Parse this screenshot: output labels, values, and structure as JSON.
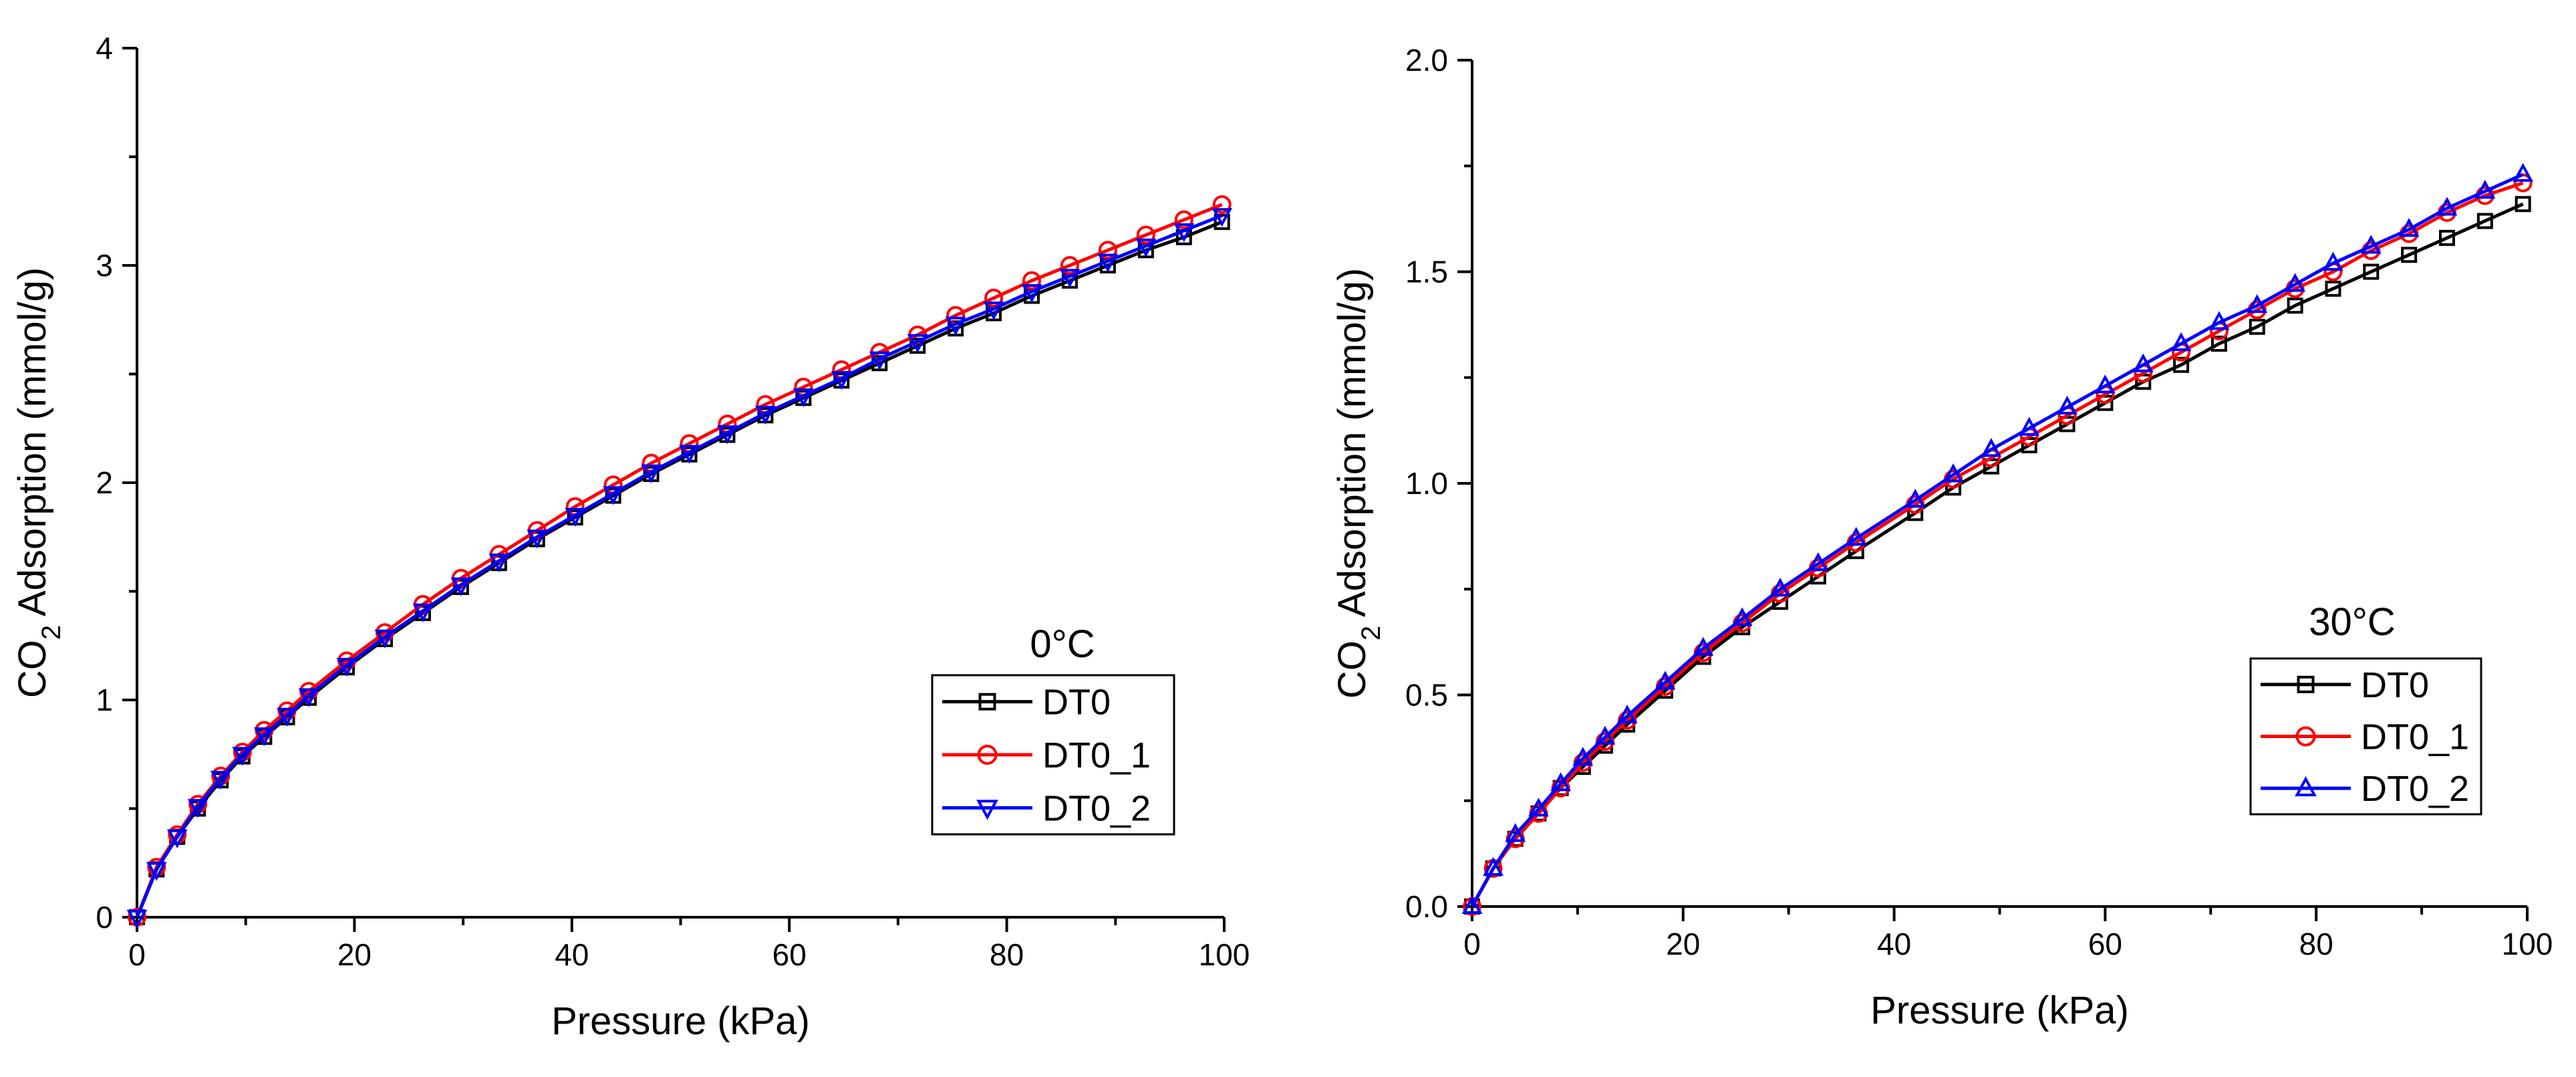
{
  "chart_data": [
    {
      "type": "line",
      "title": "",
      "annotation": "0°C",
      "xlabel": "Pressure (kPa)",
      "ylabel": {
        "prefix": "CO",
        "sub": "2",
        "suffix": " Adsorption (mmol/g)"
      },
      "xlim": [
        0,
        100
      ],
      "ylim": [
        0,
        4
      ],
      "xticks": [
        0,
        20,
        40,
        60,
        80,
        100
      ],
      "yticks": [
        0,
        1,
        2,
        3,
        4
      ],
      "xtick_labels": [
        "0",
        "20",
        "40",
        "60",
        "80",
        "100"
      ],
      "ytick_labels": [
        "0",
        "1",
        "2",
        "3",
        "4"
      ],
      "grid": false,
      "legend_position": "bottom-right",
      "x": [
        0,
        1.8,
        3.7,
        5.6,
        7.7,
        9.7,
        11.7,
        13.8,
        15.8,
        19.3,
        22.8,
        26.3,
        29.8,
        33.3,
        36.8,
        40.3,
        43.8,
        47.3,
        50.8,
        54.3,
        57.8,
        61.3,
        64.8,
        68.3,
        71.8,
        75.3,
        78.8,
        82.3,
        85.8,
        89.3,
        92.8,
        96.3,
        99.8
      ],
      "series": [
        {
          "name": "DT0",
          "color": "#000000",
          "marker": "square",
          "values": [
            0,
            0.22,
            0.37,
            0.5,
            0.63,
            0.74,
            0.83,
            0.92,
            1.01,
            1.15,
            1.28,
            1.4,
            1.52,
            1.63,
            1.74,
            1.84,
            1.94,
            2.04,
            2.13,
            2.22,
            2.31,
            2.39,
            2.47,
            2.55,
            2.63,
            2.71,
            2.78,
            2.86,
            2.93,
            3.0,
            3.07,
            3.13,
            3.2
          ]
        },
        {
          "name": "DT0_1",
          "color": "#ff0000",
          "marker": "circle",
          "values": [
            0,
            0.23,
            0.38,
            0.52,
            0.65,
            0.76,
            0.86,
            0.95,
            1.04,
            1.18,
            1.31,
            1.44,
            1.56,
            1.67,
            1.78,
            1.89,
            1.99,
            2.09,
            2.18,
            2.27,
            2.36,
            2.44,
            2.52,
            2.6,
            2.68,
            2.77,
            2.85,
            2.93,
            3.0,
            3.07,
            3.14,
            3.21,
            3.28
          ]
        },
        {
          "name": "DT0_2",
          "color": "#0000ff",
          "marker": "triangle-down",
          "values": [
            0,
            0.22,
            0.37,
            0.51,
            0.64,
            0.75,
            0.84,
            0.93,
            1.02,
            1.16,
            1.29,
            1.41,
            1.53,
            1.64,
            1.75,
            1.85,
            1.95,
            2.05,
            2.14,
            2.23,
            2.32,
            2.4,
            2.48,
            2.57,
            2.65,
            2.73,
            2.8,
            2.88,
            2.95,
            3.02,
            3.09,
            3.16,
            3.23
          ]
        }
      ]
    },
    {
      "type": "line",
      "title": "",
      "annotation": "30°C",
      "xlabel": "Pressure (kPa)",
      "ylabel": {
        "prefix": "CO",
        "sub": "2",
        "suffix": " Adsorption (mmol/g)"
      },
      "xlim": [
        0,
        100
      ],
      "ylim": [
        0,
        2.0
      ],
      "xticks": [
        0,
        20,
        40,
        60,
        80,
        100
      ],
      "yticks": [
        0,
        0.5,
        1.0,
        1.5,
        2.0
      ],
      "xtick_labels": [
        "0",
        "20",
        "40",
        "60",
        "80",
        "100"
      ],
      "ytick_labels": [
        "0.0",
        "0.5",
        "1.0",
        "1.5",
        "2.0"
      ],
      "grid": false,
      "legend_position": "bottom-right",
      "x": [
        0,
        2.0,
        4.1,
        6.3,
        8.4,
        10.5,
        12.6,
        14.7,
        18.3,
        21.9,
        25.6,
        29.2,
        32.8,
        36.4,
        42.0,
        45.6,
        49.2,
        52.8,
        56.4,
        60.0,
        63.6,
        67.2,
        70.8,
        74.4,
        78.0,
        81.6,
        85.2,
        88.8,
        92.4,
        96.0,
        99.6
      ],
      "series": [
        {
          "name": "DT0",
          "color": "#000000",
          "marker": "square",
          "values": [
            0,
            0.09,
            0.16,
            0.22,
            0.28,
            0.33,
            0.38,
            0.43,
            0.51,
            0.59,
            0.66,
            0.72,
            0.78,
            0.84,
            0.93,
            0.99,
            1.04,
            1.09,
            1.14,
            1.19,
            1.24,
            1.28,
            1.33,
            1.37,
            1.42,
            1.46,
            1.5,
            1.54,
            1.58,
            1.62,
            1.66
          ]
        },
        {
          "name": "DT0_1",
          "color": "#ff0000",
          "marker": "circle",
          "values": [
            0,
            0.09,
            0.16,
            0.22,
            0.28,
            0.34,
            0.39,
            0.44,
            0.52,
            0.6,
            0.67,
            0.74,
            0.8,
            0.86,
            0.95,
            1.01,
            1.06,
            1.11,
            1.16,
            1.21,
            1.26,
            1.31,
            1.36,
            1.41,
            1.46,
            1.5,
            1.55,
            1.59,
            1.64,
            1.68,
            1.71
          ]
        },
        {
          "name": "DT0_2",
          "color": "#0000ff",
          "marker": "triangle-up",
          "values": [
            0,
            0.09,
            0.17,
            0.23,
            0.29,
            0.35,
            0.4,
            0.45,
            0.53,
            0.61,
            0.68,
            0.75,
            0.81,
            0.87,
            0.96,
            1.02,
            1.08,
            1.13,
            1.18,
            1.23,
            1.28,
            1.33,
            1.38,
            1.42,
            1.47,
            1.52,
            1.56,
            1.6,
            1.65,
            1.69,
            1.73
          ]
        }
      ]
    }
  ]
}
